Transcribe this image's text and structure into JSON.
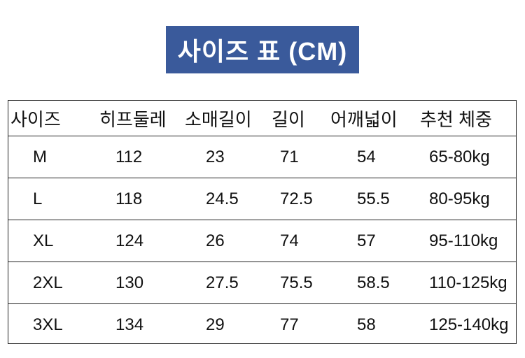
{
  "title": "사이즈 표 (CM)",
  "colors": {
    "title_background": "#3a5a9b",
    "title_text": "#ffffff",
    "border": "#222222"
  },
  "table": {
    "headers": [
      "사이즈",
      "히프둘레",
      "소매길이",
      "길이",
      "어깨넓이",
      "추천 체중"
    ],
    "rows": [
      [
        "M",
        "112",
        "23",
        "71",
        "54",
        "65-80kg"
      ],
      [
        "L",
        "118",
        "24.5",
        "72.5",
        "55.5",
        "80-95kg"
      ],
      [
        "XL",
        "124",
        "26",
        "74",
        "57",
        "95-110kg"
      ],
      [
        "2XL",
        "130",
        "27.5",
        "75.5",
        "58.5",
        "110-125kg"
      ],
      [
        "3XL",
        "134",
        "29",
        "77",
        "58",
        "125-140kg"
      ]
    ]
  }
}
